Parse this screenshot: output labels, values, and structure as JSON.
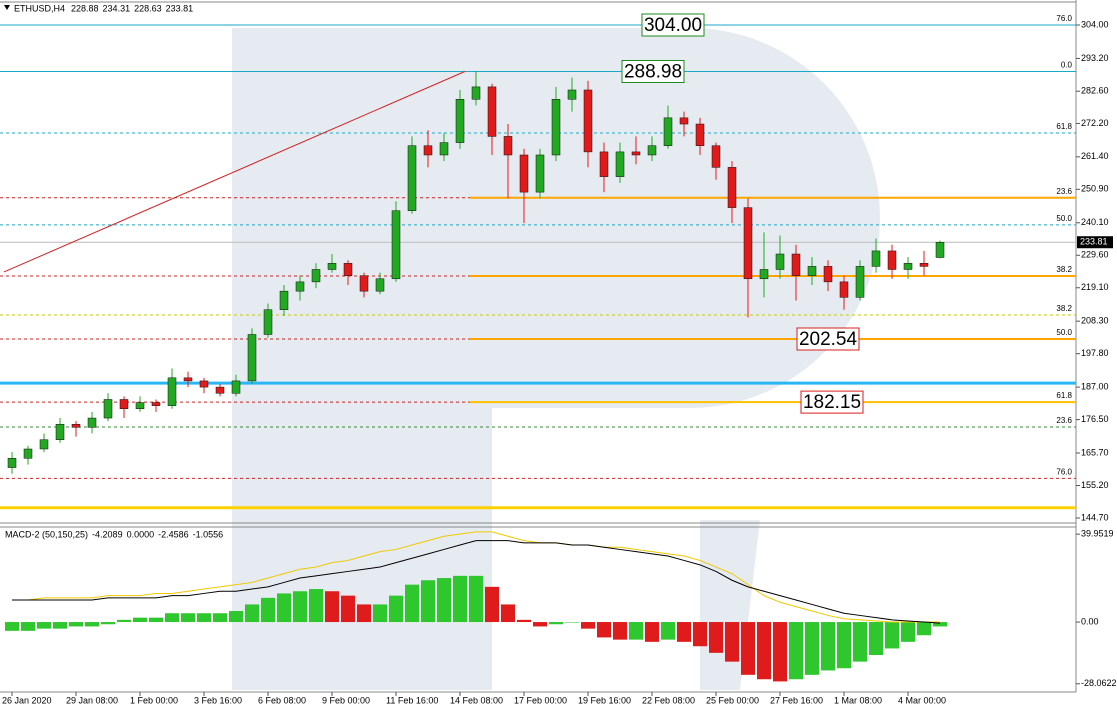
{
  "chart_data": [
    {
      "type": "candlestick",
      "title": "ETHUSD,H4",
      "up_color": "#22a822",
      "down_color": "#e01b1b",
      "xlim": [
        -0.5,
        58.5
      ],
      "xticks": [
        {
          "value": 0,
          "label": "26 Jan 2020"
        },
        {
          "value": 4,
          "label": "29 Jan 08:00"
        },
        {
          "value": 8,
          "label": "1 Feb 00:00"
        },
        {
          "value": 12,
          "label": "3 Feb 16:00"
        },
        {
          "value": 16,
          "label": "6 Feb 08:00"
        },
        {
          "value": 20,
          "label": "9 Feb 00:00"
        },
        {
          "value": 24,
          "label": "11 Feb 16:00"
        },
        {
          "value": 28,
          "label": "14 Feb 08:00"
        },
        {
          "value": 32,
          "label": "17 Feb 00:00"
        },
        {
          "value": 36,
          "label": "19 Feb 16:00"
        },
        {
          "value": 40,
          "label": "22 Feb 08:00"
        },
        {
          "value": 44,
          "label": "25 Feb 00:00"
        },
        {
          "value": 48,
          "label": "27 Feb 16:00"
        },
        {
          "value": 52,
          "label": "1 Mar 08:00"
        },
        {
          "value": 56,
          "label": "4 Mar 00:00"
        }
      ],
      "ylim": [
        143.41,
        312.08
      ],
      "yticks": [
        {
          "value": 304,
          "label": "304.00"
        },
        {
          "value": 293.2,
          "label": "293.20"
        },
        {
          "value": 282.6,
          "label": "282.60"
        },
        {
          "value": 272.2,
          "label": "272.20"
        },
        {
          "value": 261.4,
          "label": "261.40"
        },
        {
          "value": 250.9,
          "label": "250.90"
        },
        {
          "value": 240.1,
          "label": "240.10"
        },
        {
          "value": 229.6,
          "label": "229.60"
        },
        {
          "value": 219.1,
          "label": "219.10"
        },
        {
          "value": 208.3,
          "label": "208.30"
        },
        {
          "value": 197.8,
          "label": "197.80"
        },
        {
          "value": 187,
          "label": "187.00"
        },
        {
          "value": 176.5,
          "label": "176.50"
        },
        {
          "value": 165.7,
          "label": "165.70"
        },
        {
          "value": 155.2,
          "label": "155.20"
        },
        {
          "value": 144.7,
          "label": "144.70"
        }
      ],
      "open": [
        161,
        164,
        167,
        170,
        175,
        174,
        177,
        183,
        180,
        182,
        181,
        190,
        189,
        187,
        185,
        189,
        204,
        212,
        218,
        221,
        225,
        227,
        223,
        218,
        222,
        244,
        265,
        262,
        266,
        280,
        284,
        268,
        262,
        250,
        262,
        280,
        283,
        263,
        255,
        263,
        262,
        265,
        274,
        272,
        265,
        258,
        245,
        222,
        225,
        230,
        223,
        226,
        221,
        216,
        226,
        231,
        225,
        227,
        228.88
      ],
      "high": [
        166,
        168,
        172,
        177,
        176,
        179,
        185,
        184,
        184,
        183,
        193,
        192,
        190,
        188,
        191,
        206,
        214,
        220,
        223,
        227,
        230,
        228,
        224,
        224,
        247,
        268,
        270,
        269,
        283,
        288.98,
        285,
        272,
        264,
        264,
        284,
        287,
        286,
        266,
        266,
        268,
        268,
        278,
        276,
        274,
        266,
        260,
        248,
        237,
        236,
        233,
        229,
        228,
        223,
        228,
        235,
        233,
        229,
        231,
        234.31
      ],
      "low": [
        159,
        162,
        166,
        169,
        171,
        172,
        176,
        177,
        179,
        179,
        180,
        187,
        185,
        184,
        184,
        188,
        203,
        210,
        215,
        219,
        224,
        220,
        216,
        217,
        221,
        243,
        258,
        260,
        264,
        278,
        262,
        248,
        240,
        248,
        260,
        276,
        258,
        250,
        253,
        259,
        260,
        264,
        268,
        262,
        254,
        240,
        209.5,
        216,
        222,
        215,
        220,
        218,
        212,
        215,
        224,
        222,
        222,
        223,
        228.63
      ],
      "close": [
        164,
        167,
        170,
        175,
        174,
        177,
        183,
        180,
        182,
        181,
        190,
        189,
        187,
        185,
        189,
        204,
        212,
        218,
        221,
        225,
        227,
        223,
        218,
        222,
        244,
        265,
        262,
        266,
        280,
        284,
        268,
        262,
        250,
        262,
        280,
        283,
        263,
        255,
        263,
        262,
        265,
        274,
        272,
        265,
        258,
        245,
        222,
        225,
        230,
        223,
        226,
        221,
        216,
        226,
        231,
        225,
        227,
        226,
        233.81
      ],
      "trendline": {
        "x": [
          -0.5,
          28.3
        ],
        "y": [
          224.2,
          288.98
        ],
        "color": "#d42020"
      },
      "levels": [
        {
          "value": 304,
          "label": "76.0",
          "color": "#19a9c8",
          "style": "solid"
        },
        {
          "value": 288.98,
          "label": "0.0",
          "color": "#d42020",
          "style": "dashed"
        },
        {
          "value": 288.98,
          "color": "#19a9c8",
          "style": "solid"
        },
        {
          "value": 269.1,
          "label": "61.8",
          "color": "#19a9c8",
          "style": "dashed"
        },
        {
          "value": 248.2,
          "label": "23.6",
          "color": "#d42020",
          "style": "dashed",
          "segment_color": "#ffa500"
        },
        {
          "value": 239.4,
          "label": "50.0",
          "color": "#19a9c8",
          "style": "dashed"
        },
        {
          "value": 222.9,
          "label": "38.2",
          "color": "#d42020",
          "style": "dashed",
          "segment_color": "#ffa500"
        },
        {
          "value": 210.3,
          "label": "38.2",
          "color": "#c8c800",
          "style": "dashed"
        },
        {
          "value": 202.54,
          "label": "50.0",
          "color": "#d42020",
          "style": "dashed",
          "segment_color": "#ffa500"
        },
        {
          "value": 188.3,
          "color": "#29b6f6",
          "style": "thick"
        },
        {
          "value": 182.15,
          "label": "61.8",
          "color": "#d42020",
          "style": "dashed",
          "segment_color": "#ffc000"
        },
        {
          "value": 174.1,
          "label": "23.6",
          "color": "#3a8a3a",
          "style": "dashed"
        },
        {
          "value": 157.5,
          "label": "76.0",
          "color": "#d42020",
          "style": "dashed"
        },
        {
          "value": 148,
          "color": "#ffd000",
          "style": "thick"
        }
      ],
      "price_labels": [
        {
          "value": 304,
          "label": "304.00",
          "color": "#1e8a1e"
        },
        {
          "value": 288.98,
          "label": "288.98",
          "color": "#1e8a1e"
        },
        {
          "value": 202.54,
          "label": "202.54",
          "color": "#d81e1e"
        },
        {
          "value": 182.15,
          "label": "182.15",
          "color": "#d81e1e"
        }
      ]
    },
    {
      "type": "macd",
      "title": "MACD-2 (50,150,25)",
      "readout": [
        -4.2089,
        {
          "value": 0,
          "label": "0.0000"
        },
        -2.4586,
        -1.0556
      ],
      "ylim": [
        -31.8,
        43.2
      ],
      "yticks": [
        39.9519,
        {
          "value": 0,
          "label": "0.00"
        },
        -28.0622
      ],
      "up_color": "#2ec72e",
      "down_color": "#e01b1b",
      "histogram": [
        -4,
        -4,
        -3,
        -3,
        -2,
        -2,
        -1,
        1,
        2,
        2,
        4,
        4,
        4,
        4,
        5,
        8,
        11,
        13,
        14,
        15,
        14,
        12,
        8,
        8,
        12,
        17,
        19,
        20,
        21,
        21,
        16,
        8,
        1,
        -2,
        -1,
        0,
        -3,
        -7,
        -8,
        -8,
        -9,
        -8,
        -9,
        -11,
        -14,
        -18,
        -24,
        -26,
        -27,
        -26,
        -24,
        -22,
        -21,
        -18,
        -15,
        -12,
        -9,
        -6,
        -2
      ],
      "macd_line": {
        "color": "#000000",
        "values": [
          10,
          10,
          10,
          10,
          10,
          10,
          11,
          11,
          11,
          11,
          12,
          12,
          13,
          14,
          14,
          15,
          16,
          18,
          20,
          21,
          22,
          23,
          24,
          25,
          27,
          29,
          31,
          33,
          35,
          37,
          37,
          37,
          36,
          36,
          36,
          35,
          35,
          34,
          33,
          32,
          31,
          30,
          28,
          26,
          23,
          19,
          16,
          14,
          12,
          10,
          8,
          6,
          4,
          3,
          2,
          1,
          0.5,
          0,
          -0.5
        ]
      },
      "signal_line": {
        "color": "#f0c800",
        "values": [
          10,
          10,
          11,
          11,
          11,
          11,
          12,
          12,
          12,
          13,
          13,
          14,
          15,
          16,
          17,
          18,
          20,
          22,
          24,
          25,
          27,
          28,
          30,
          32,
          33,
          35,
          37,
          39,
          40,
          41,
          41,
          39,
          37,
          36,
          36,
          35,
          35,
          34,
          34,
          33,
          32,
          31,
          30,
          28,
          25,
          22,
          17,
          12,
          9,
          7,
          5,
          3,
          1.5,
          1,
          0.5,
          0,
          0,
          0,
          0
        ]
      }
    }
  ]
}
